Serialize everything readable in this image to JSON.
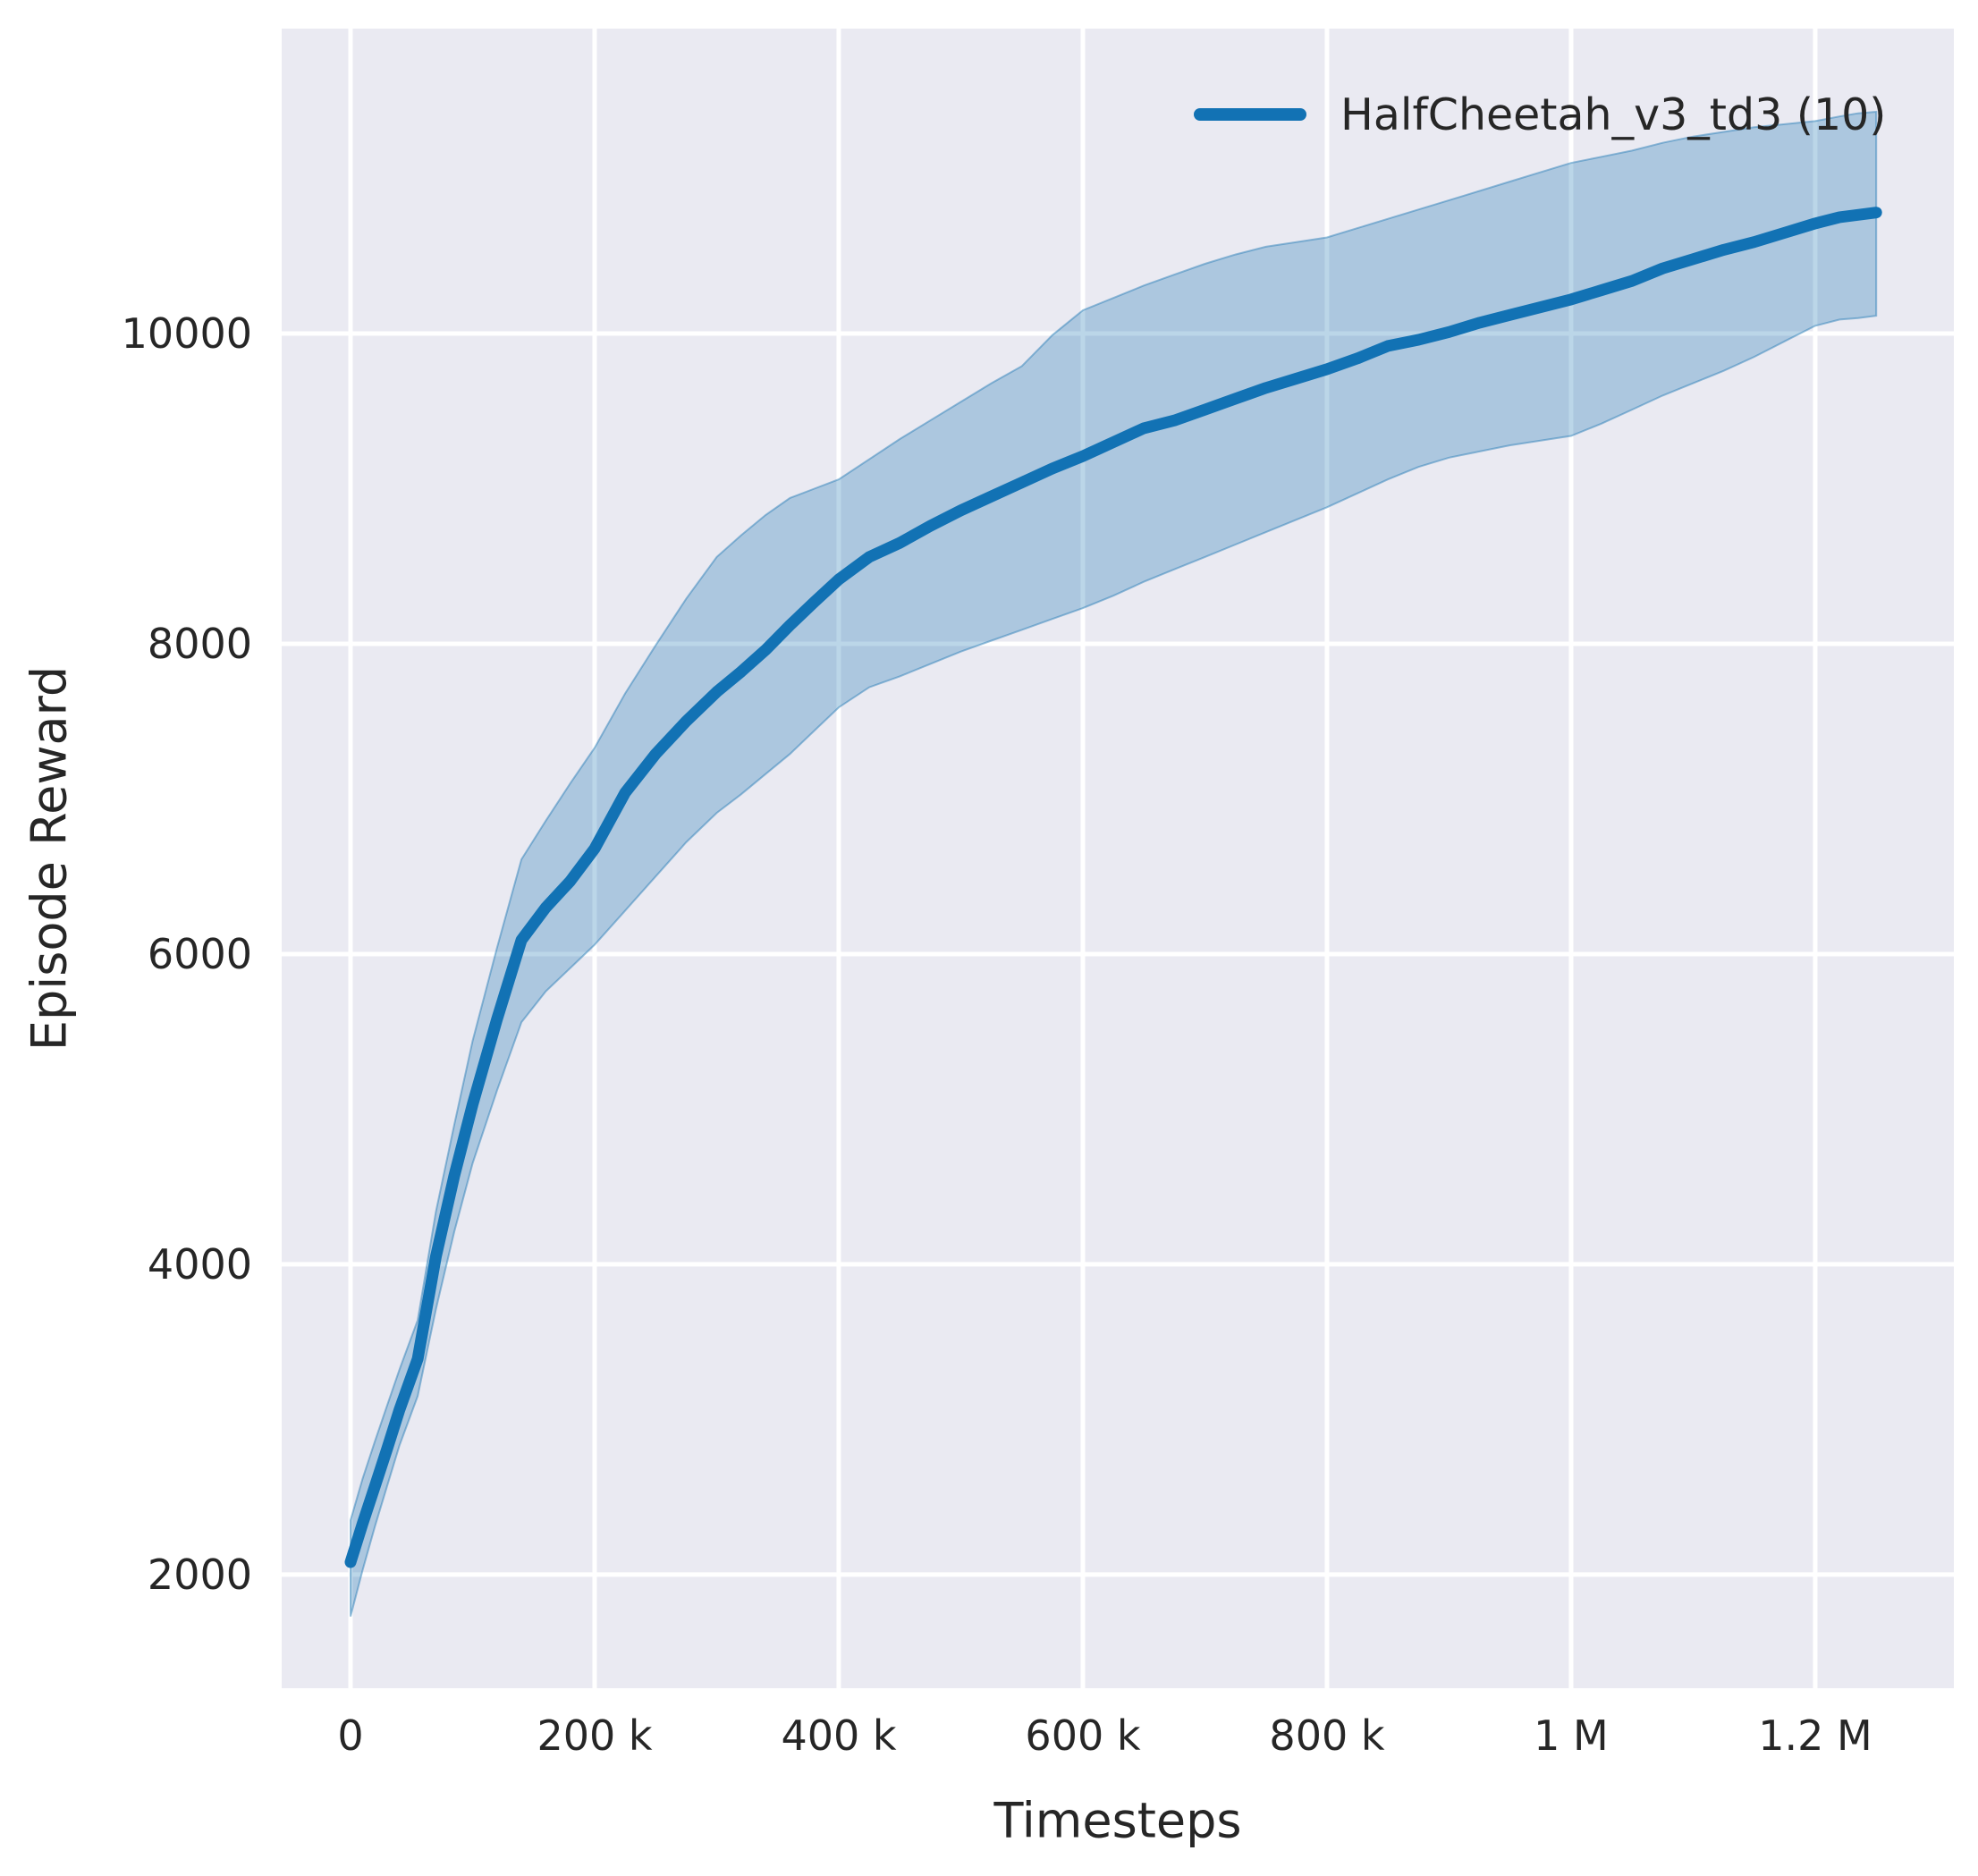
{
  "chart_data": {
    "type": "line",
    "title": "",
    "xlabel": "Timesteps",
    "ylabel": "Episode Reward",
    "grid": true,
    "background_color": "#eaeaf2",
    "gridline_color": "#ffffff",
    "text_color": "#262626",
    "xlim": [
      -56400,
      1313600
    ],
    "ylim": [
      1267,
      11966
    ],
    "x_ticks": [
      {
        "value": 0,
        "label": "0"
      },
      {
        "value": 200000,
        "label": "200 k"
      },
      {
        "value": 400000,
        "label": "400 k"
      },
      {
        "value": 600000,
        "label": "600 k"
      },
      {
        "value": 800000,
        "label": "800 k"
      },
      {
        "value": 1000000,
        "label": "1 M"
      },
      {
        "value": 1200000,
        "label": "1.2 M"
      }
    ],
    "y_ticks": [
      {
        "value": 2000,
        "label": "2000"
      },
      {
        "value": 4000,
        "label": "4000"
      },
      {
        "value": 6000,
        "label": "6000"
      },
      {
        "value": 8000,
        "label": "8000"
      },
      {
        "value": 10000,
        "label": "10000"
      }
    ],
    "legend": {
      "position": "upper right",
      "entries": [
        {
          "label": "HalfCheetah_v3_td3 (10)",
          "color": "#1272b4"
        }
      ]
    },
    "series": [
      {
        "name": "HalfCheetah_v3_td3 (10)",
        "color": "#1272b4",
        "band_fill": "rgba(31,119,180,0.30)",
        "band_edge": "rgba(31,119,180,0.45)",
        "x": [
          0,
          10000,
          20000,
          30000,
          40000,
          55000,
          70000,
          85000,
          100000,
          120000,
          140000,
          160000,
          180000,
          200000,
          225000,
          250000,
          275000,
          300000,
          320000,
          340000,
          360000,
          380000,
          400000,
          425000,
          450000,
          475000,
          500000,
          525000,
          550000,
          575000,
          600000,
          625000,
          650000,
          675000,
          700000,
          725000,
          750000,
          775000,
          800000,
          825000,
          850000,
          875000,
          900000,
          925000,
          950000,
          975000,
          1000000,
          1025000,
          1050000,
          1075000,
          1100000,
          1125000,
          1150000,
          1175000,
          1200000,
          1220000,
          1235000,
          1250000
        ],
        "mean": [
          2080,
          2330,
          2570,
          2810,
          3060,
          3390,
          4050,
          4570,
          5030,
          5580,
          6090,
          6300,
          6470,
          6680,
          7040,
          7290,
          7500,
          7690,
          7820,
          7960,
          8120,
          8270,
          8415,
          8560,
          8650,
          8760,
          8860,
          8950,
          9040,
          9130,
          9210,
          9300,
          9390,
          9440,
          9510,
          9580,
          9650,
          9710,
          9770,
          9840,
          9920,
          9960,
          10010,
          10070,
          10120,
          10170,
          10220,
          10280,
          10340,
          10420,
          10480,
          10540,
          10590,
          10650,
          10710,
          10750,
          10765,
          10780
        ],
        "lower": [
          1730,
          2030,
          2310,
          2570,
          2830,
          3150,
          3710,
          4210,
          4650,
          5120,
          5560,
          5760,
          5910,
          6060,
          6280,
          6500,
          6720,
          6910,
          7030,
          7160,
          7290,
          7440,
          7590,
          7720,
          7790,
          7870,
          7950,
          8020,
          8090,
          8160,
          8230,
          8310,
          8400,
          8480,
          8560,
          8640,
          8720,
          8800,
          8880,
          8970,
          9060,
          9140,
          9200,
          9240,
          9280,
          9310,
          9340,
          9420,
          9510,
          9600,
          9680,
          9760,
          9850,
          9950,
          10050,
          10090,
          10100,
          10115
        ],
        "upper": [
          2350,
          2620,
          2860,
          3090,
          3320,
          3640,
          4340,
          4900,
          5440,
          6040,
          6610,
          6860,
          7100,
          7330,
          7680,
          7990,
          8290,
          8560,
          8700,
          8830,
          8940,
          9000,
          9060,
          9190,
          9320,
          9440,
          9560,
          9680,
          9790,
          9990,
          10150,
          10230,
          10310,
          10380,
          10450,
          10510,
          10560,
          10590,
          10620,
          10680,
          10740,
          10800,
          10860,
          10920,
          10980,
          11040,
          11100,
          11140,
          11180,
          11230,
          11270,
          11300,
          11330,
          11350,
          11370,
          11400,
          11420,
          11430
        ]
      }
    ]
  }
}
